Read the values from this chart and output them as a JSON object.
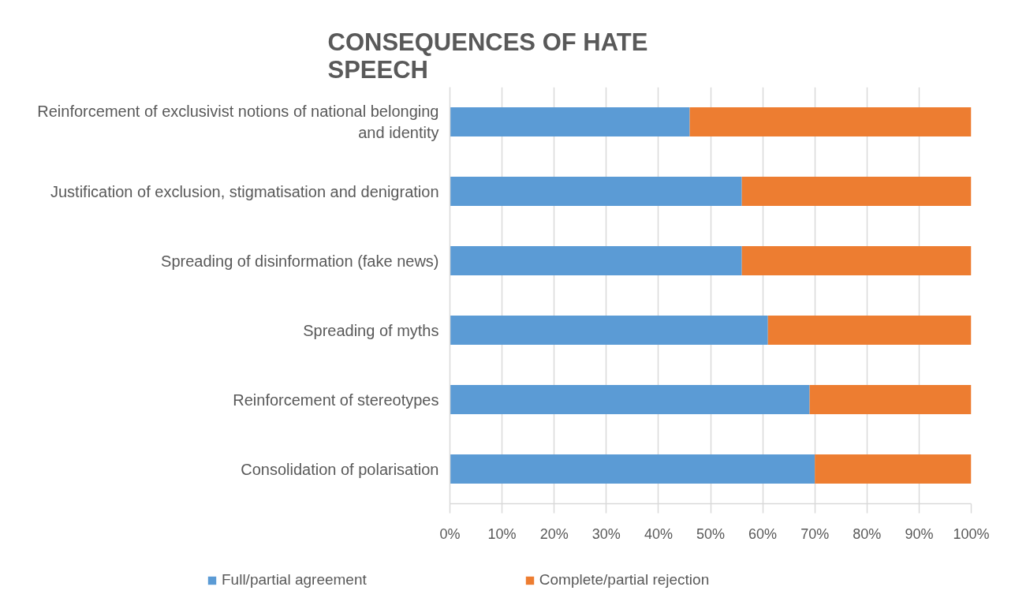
{
  "chart_data": {
    "type": "bar",
    "orientation": "horizontal",
    "stacked": true,
    "title": "CONSEQUENCES OF HATE SPEECH",
    "categories": [
      "Reinforcement of exclusivist notions of national belonging and identity",
      "Justification of exclusion, stigmatisation and denigration",
      "Spreading of disinformation (fake news)",
      "Spreading of myths",
      "Reinforcement of stereotypes",
      "Consolidation of polarisation"
    ],
    "series": [
      {
        "name": "Full/partial agreement",
        "color": "#5b9bd5",
        "values": [
          46,
          56,
          56,
          61,
          69,
          70
        ]
      },
      {
        "name": "Complete/partial rejection",
        "color": "#ed7d31",
        "values": [
          54,
          44,
          44,
          39,
          31,
          30
        ]
      }
    ],
    "xlim": [
      0,
      100
    ],
    "xticks": [
      {
        "value": 0,
        "label": "0%"
      },
      {
        "value": 10,
        "label": "10%"
      },
      {
        "value": 20,
        "label": "20%"
      },
      {
        "value": 30,
        "label": "30%"
      },
      {
        "value": 40,
        "label": "40%"
      },
      {
        "value": 50,
        "label": "50%"
      },
      {
        "value": 60,
        "label": "60%"
      },
      {
        "value": 70,
        "label": "70%"
      },
      {
        "value": 80,
        "label": "80%"
      },
      {
        "value": 90,
        "label": "90%"
      },
      {
        "value": 100,
        "label": "100%"
      }
    ],
    "grid": "x",
    "legend": "bottom"
  }
}
